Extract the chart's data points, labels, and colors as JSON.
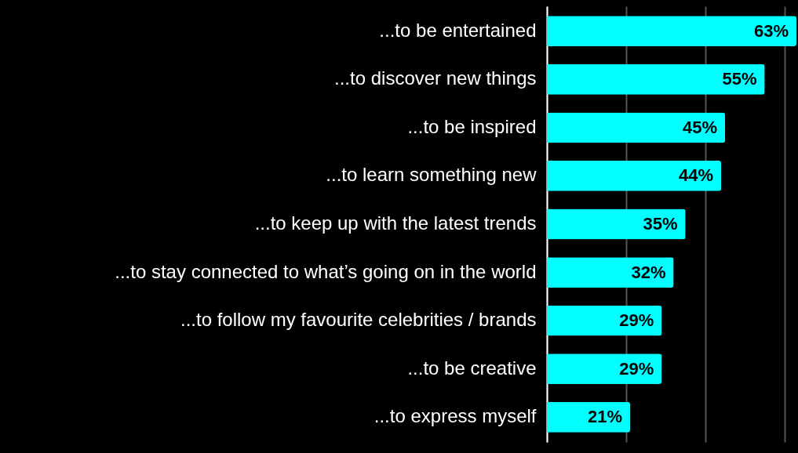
{
  "chart_data": {
    "type": "bar",
    "orientation": "horizontal",
    "categories": [
      "...to be entertained",
      "...to discover new things",
      "...to be inspired",
      "...to learn something new",
      "...to keep up with the latest trends",
      "...to stay connected to what’s going on in the world",
      "...to follow my favourite celebrities / brands",
      "...to be creative",
      "...to express myself"
    ],
    "values": [
      63,
      55,
      45,
      44,
      35,
      32,
      29,
      29,
      21
    ],
    "value_labels": [
      "63%",
      "55%",
      "45%",
      "44%",
      "35%",
      "32%",
      "29%",
      "29%",
      "21%"
    ],
    "color": "#00ffff",
    "xlim": [
      0,
      63
    ],
    "xticks": [
      {
        "value": 0,
        "label": null
      },
      {
        "value": 20,
        "label": null
      },
      {
        "value": 40,
        "label": null
      },
      {
        "value": 60,
        "label": null
      }
    ],
    "grid": "x",
    "tick_labels": "y"
  }
}
